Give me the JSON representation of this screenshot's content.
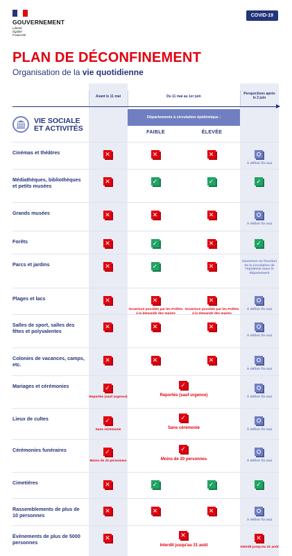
{
  "header": {
    "org": "GOUVERNEMENT",
    "motto": [
      "Liberté",
      "Égalité",
      "Fraternité"
    ],
    "badge": "COVID-19",
    "title": "PLAN DE DÉCONFINEMENT",
    "subtitle_prefix": "Organisation de la ",
    "subtitle_bold": "vie quotidienne"
  },
  "columns": {
    "before": "Avant le 11 mai",
    "during": "Du 11 mai au 1er juin",
    "after": "Perspectives après le 2 juin",
    "band": "Départements à circulation épidémique :",
    "low": "FAIBLE",
    "high": "ÉLEVÉE"
  },
  "section": {
    "icon": "building-columns-icon",
    "title_line1": "VIE SOCIALE",
    "title_line2": "ET ACTIVITÉS"
  },
  "colors": {
    "red": "#e1000f",
    "green": "#20a463",
    "blue": "#6f7fc1",
    "navy": "#23347a"
  },
  "rows": [
    {
      "label": "Cinémas et théâtres",
      "before": "red",
      "low": "red",
      "high": "red",
      "after": "blue",
      "after_note": "À définir fin mai"
    },
    {
      "label": "Médiathèques, bibliothèques et petits musées",
      "before": "red",
      "low": "green",
      "high": "green",
      "after": "green"
    },
    {
      "label": "Grands musées",
      "before": "red",
      "low": "red",
      "high": "red",
      "after": "blue",
      "after_note": "À définir fin mai"
    },
    {
      "label": "Forêts",
      "before": "red",
      "low": "green",
      "high": "red",
      "after": "green"
    },
    {
      "label": "Parcs et jardins",
      "before": "red",
      "low": "green",
      "high": "red",
      "after_note": "Ouverture en fonction de la circulation de l'épidémie dans le département"
    },
    {
      "label": "Plages et lacs",
      "before": "red",
      "low": "red",
      "low_note": "Ouverture possible par les Préfets à la demande des maires",
      "high": "red",
      "high_note": "Ouverture possible par les Préfets à la demande des maires",
      "after": "blue",
      "after_note": "À définir fin mai"
    },
    {
      "label": "Salles de sport, salles des fêtes et polyvalentes",
      "before": "red",
      "low": "red",
      "high": "red",
      "after": "blue",
      "after_note": "À définir fin mai"
    },
    {
      "label": "Colonies de vacances, camps, etc.",
      "before": "red",
      "low": "red",
      "high": "red",
      "after": "blue",
      "after_note": "À définir fin mai"
    },
    {
      "label": "Mariages et cérémonies",
      "before": "redcheck",
      "before_note": "Reportés (sauf urgence)",
      "span": "redcheck",
      "span_note": "Reportés (sauf urgence)",
      "after": "blue",
      "after_note": "À définir fin mai"
    },
    {
      "label": "Lieux de cultes",
      "before": "redcheck",
      "before_note": "Sans cérémonie",
      "span": "redcheck",
      "span_note": "Sans cérémonie",
      "after": "blue",
      "after_note": "À définir fin mai"
    },
    {
      "label": "Cérémonies funéraires",
      "before": "redcheck",
      "before_note": "Moins de 20 personnes",
      "span": "redcheck",
      "span_note": "Moins de 20 personnes",
      "after": "blue",
      "after_note": "À définir fin mai"
    },
    {
      "label": "Cimetières",
      "before": "red",
      "low": "green",
      "high": "green",
      "after": "green"
    },
    {
      "label": "Rassemblements de plus de 10 personnes",
      "before": "red",
      "low": "red",
      "high": "red",
      "after": "blue",
      "after_note": "À définir fin mai"
    },
    {
      "label": "Évènements de plus de 5000 personnes",
      "before": "red",
      "span": "red",
      "span_note": "Interdit jusqu'au 31 août",
      "after": "red",
      "after_note": "Interdit jusqu'au 31 août"
    }
  ]
}
